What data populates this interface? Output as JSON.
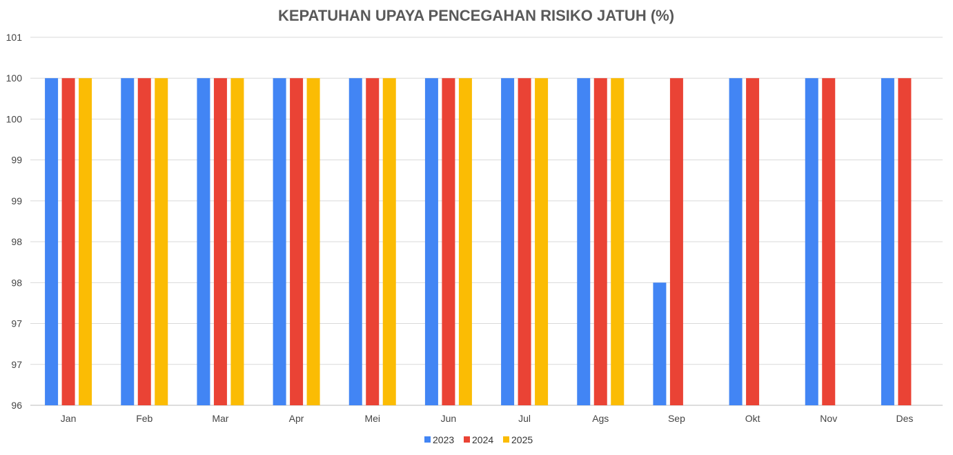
{
  "chart_data": {
    "type": "bar",
    "title": "KEPATUHAN UPAYA PENCEGAHAN RISIKO JATUH (%)",
    "xlabel": "",
    "ylabel": "",
    "ylim": [
      96,
      100.5
    ],
    "y_ticks": [
      96,
      96.5,
      97,
      97.5,
      98,
      98.5,
      99,
      99.5,
      100,
      100.5
    ],
    "y_tick_labels": [
      "96",
      "97",
      "97",
      "98",
      "98",
      "99",
      "99",
      "100",
      "100",
      "101"
    ],
    "grid": true,
    "legend_position": "bottom",
    "categories": [
      "Jan",
      "Feb",
      "Mar",
      "Apr",
      "Mei",
      "Jun",
      "Jul",
      "Ags",
      "Sep",
      "Okt",
      "Nov",
      "Des"
    ],
    "series": [
      {
        "name": "2023",
        "color": "#4285F4",
        "values": [
          100,
          100,
          100,
          100,
          100,
          100,
          100,
          100,
          97.5,
          100,
          100,
          100
        ]
      },
      {
        "name": "2024",
        "color": "#EA4335",
        "values": [
          100,
          100,
          100,
          100,
          100,
          100,
          100,
          100,
          100,
          100,
          100,
          100
        ]
      },
      {
        "name": "2025",
        "color": "#FBBC04",
        "values": [
          100,
          100,
          100,
          100,
          100,
          100,
          100,
          100,
          null,
          null,
          null,
          null
        ]
      }
    ]
  }
}
